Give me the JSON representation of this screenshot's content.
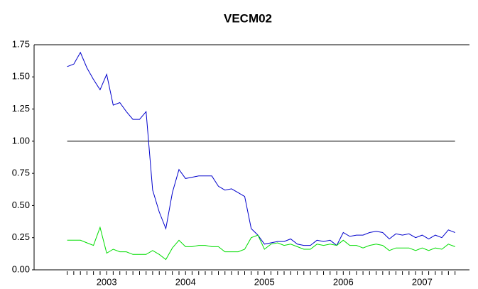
{
  "chart_data": {
    "type": "line",
    "title": "VECM02",
    "x": [
      2003,
      2003.083,
      2003.167,
      2003.25,
      2003.333,
      2003.417,
      2003.5,
      2003.583,
      2003.667,
      2003.75,
      2003.833,
      2003.917,
      2004,
      2004.083,
      2004.167,
      2004.25,
      2004.333,
      2004.417,
      2004.5,
      2004.583,
      2004.667,
      2004.75,
      2004.833,
      2004.917,
      2005,
      2005.083,
      2005.167,
      2005.25,
      2005.333,
      2005.417,
      2005.5,
      2005.583,
      2005.667,
      2005.75,
      2005.833,
      2005.917,
      2006,
      2006.083,
      2006.167,
      2006.25,
      2006.333,
      2006.417,
      2006.5,
      2006.583,
      2006.667,
      2006.75,
      2006.833,
      2006.917,
      2007,
      2007.083,
      2007.167,
      2007.25,
      2007.333,
      2007.417,
      2007.5,
      2007.583,
      2007.667,
      2007.75,
      2007.833,
      2007.917
    ],
    "series": [
      {
        "color": "#0000cc",
        "values": [
          1.58,
          1.6,
          1.69,
          1.57,
          1.48,
          1.4,
          1.52,
          1.28,
          1.3,
          1.23,
          1.17,
          1.17,
          1.23,
          0.62,
          0.45,
          0.32,
          0.6,
          0.78,
          0.71,
          0.72,
          0.73,
          0.73,
          0.73,
          0.65,
          0.62,
          0.63,
          0.6,
          0.57,
          0.32,
          0.27,
          0.2,
          0.21,
          0.22,
          0.22,
          0.24,
          0.2,
          0.19,
          0.19,
          0.23,
          0.22,
          0.23,
          0.19,
          0.29,
          0.26,
          0.27,
          0.27,
          0.29,
          0.3,
          0.29,
          0.24,
          0.28,
          0.27,
          0.28,
          0.25,
          0.27,
          0.24,
          0.27,
          0.25,
          0.31,
          0.29
        ]
      },
      {
        "color": "#00dd00",
        "values": [
          0.23,
          0.23,
          0.23,
          0.21,
          0.19,
          0.33,
          0.13,
          0.16,
          0.14,
          0.14,
          0.12,
          0.12,
          0.12,
          0.15,
          0.12,
          0.08,
          0.17,
          0.23,
          0.18,
          0.18,
          0.19,
          0.19,
          0.18,
          0.18,
          0.14,
          0.14,
          0.14,
          0.16,
          0.25,
          0.27,
          0.16,
          0.2,
          0.21,
          0.19,
          0.2,
          0.18,
          0.16,
          0.16,
          0.2,
          0.19,
          0.2,
          0.19,
          0.23,
          0.19,
          0.19,
          0.17,
          0.19,
          0.2,
          0.19,
          0.15,
          0.17,
          0.17,
          0.17,
          0.15,
          0.17,
          0.15,
          0.17,
          0.16,
          0.2,
          0.18
        ]
      }
    ],
    "reference_line": {
      "value": 1,
      "color": "#000000"
    },
    "xlim": [
      2002.58,
      2008.1
    ],
    "xticks": [
      {
        "value": 2003.5,
        "label": "2003"
      },
      {
        "value": 2004.5,
        "label": "2004"
      },
      {
        "value": 2005.5,
        "label": "2005"
      },
      {
        "value": 2006.5,
        "label": "2006"
      },
      {
        "value": 2007.5,
        "label": "2007"
      }
    ],
    "ylim": [
      0,
      1.75
    ],
    "yticks": [
      {
        "value": 0,
        "label": "0.00"
      },
      {
        "value": 0.25,
        "label": "0.25"
      },
      {
        "value": 0.5,
        "label": "0.50"
      },
      {
        "value": 0.75,
        "label": "0.75"
      },
      {
        "value": 1,
        "label": "1.00"
      },
      {
        "value": 1.25,
        "label": "1.25"
      },
      {
        "value": 1.5,
        "label": "1.50"
      },
      {
        "value": 1.75,
        "label": "1.75"
      }
    ]
  }
}
